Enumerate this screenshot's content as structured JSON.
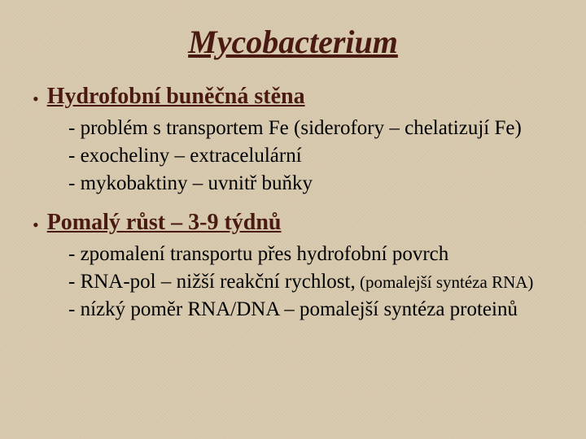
{
  "title": "Mycobacterium",
  "colors": {
    "background": "#d9cbb0",
    "accent": "#4a1a12",
    "body_text": "#000000"
  },
  "typography": {
    "title_fontsize": 40,
    "heading_fontsize": 28,
    "body_fontsize": 25,
    "small_fontsize": 21,
    "font_family": "Times New Roman"
  },
  "bullets": [
    {
      "heading": "Hydrofobní buněčná stěna",
      "lines": [
        "- problém s transportem Fe (siderofory – chelatizují Fe)",
        "- exocheliny – extracelulární",
        "- mykobaktiny – uvnitř buňky"
      ]
    },
    {
      "heading": "Pomalý růst – 3-9 týdnů",
      "lines": [
        "- zpomalení transportu přes hydrofobní povrch",
        "",
        "- nízký poměr RNA/DNA – pomalejší syntéza proteinů"
      ],
      "line2_main": "- RNA-pol – nižší reakční rychlost,",
      "line2_note": " (pomalejší syntéza RNA)"
    }
  ]
}
